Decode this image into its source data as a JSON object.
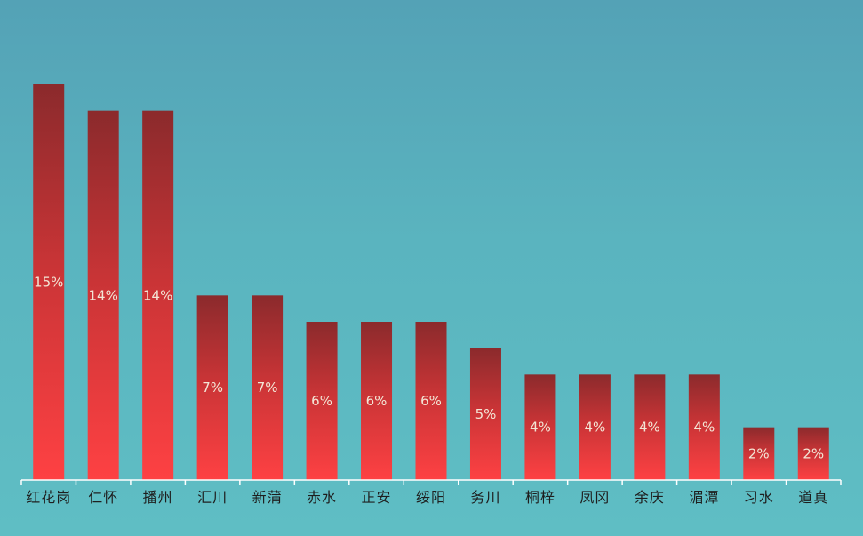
{
  "chart_data": {
    "type": "bar",
    "categories": [
      "红花岗",
      "仁怀",
      "播州",
      "汇川",
      "新蒲",
      "赤水",
      "正安",
      "绥阳",
      "务川",
      "桐梓",
      "凤冈",
      "余庆",
      "湄潭",
      "习水",
      "道真"
    ],
    "values": [
      15,
      14,
      14,
      7,
      7,
      6,
      6,
      6,
      5,
      4,
      4,
      4,
      4,
      2,
      2
    ],
    "data_labels": [
      "15%",
      "14%",
      "14%",
      "7%",
      "7%",
      "6%",
      "6%",
      "6%",
      "5%",
      "4%",
      "4%",
      "4%",
      "4%",
      "2%",
      "2%"
    ],
    "title": "",
    "xlabel": "",
    "ylabel": "",
    "grid": false,
    "legend": "none",
    "colors": {
      "bar_top": "#8b2a2c",
      "bar_mid": "#c83436",
      "bar_bottom": "#fe4143",
      "axis": "#ffffff",
      "label": "#f3e6d6",
      "tick_text": "#1e1e1e"
    }
  }
}
